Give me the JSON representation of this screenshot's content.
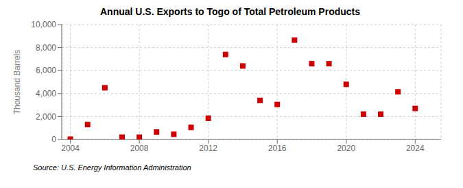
{
  "chart_data": {
    "type": "scatter",
    "title": "Annual U.S. Exports to Togo of Total Petroleum Products",
    "y_label": "Thousand Barrels",
    "annotations": [
      "Source: U.S. Energy Information Administration"
    ],
    "x": [
      2004,
      2005,
      2006,
      2007,
      2008,
      2009,
      2010,
      2011,
      2012,
      2013,
      2014,
      2015,
      2016,
      2017,
      2018,
      2019,
      2020,
      2021,
      2022,
      2023,
      2024
    ],
    "values": [
      30,
      1300,
      4500,
      200,
      200,
      650,
      450,
      1050,
      1850,
      7400,
      6400,
      3400,
      3050,
      8650,
      6600,
      6600,
      4800,
      2200,
      2200,
      4150,
      2700
    ],
    "color": "#cc0000",
    "marker": "square",
    "xlim": [
      2003.5,
      2025.5
    ],
    "xticks": [
      2004,
      2008,
      2012,
      2016,
      2020,
      2024
    ],
    "ylim": [
      0,
      10000
    ],
    "yticks": [
      0,
      {
        "value": 2000,
        "label": "2,000"
      },
      {
        "value": 4000,
        "label": "4,000"
      },
      {
        "value": 6000,
        "label": "6,000"
      },
      {
        "value": 8000,
        "label": "8,000"
      },
      {
        "value": 10000,
        "label": "10,000"
      }
    ],
    "grid": true
  }
}
